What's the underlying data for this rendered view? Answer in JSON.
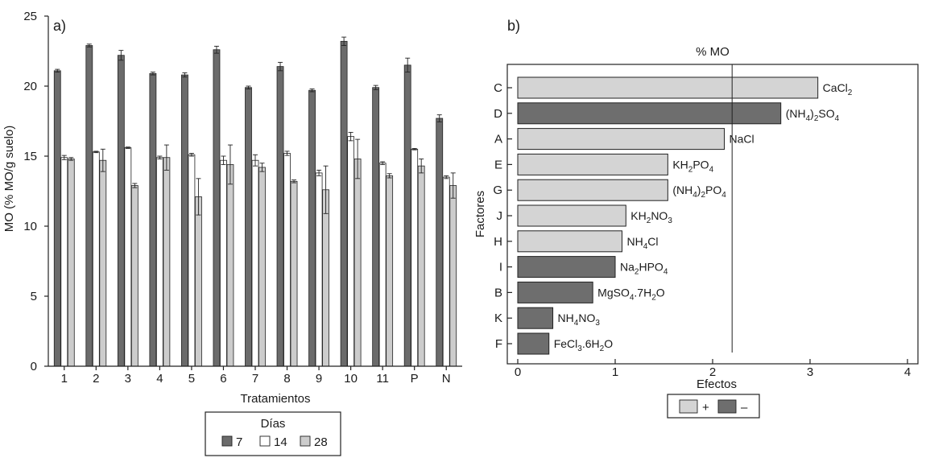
{
  "chart_data": [
    {
      "panel": "a)",
      "type": "bar",
      "title": "",
      "xlabel": "Tratamientos",
      "ylabel": "MO (% MO/g suelo)",
      "ylim": [
        0,
        25
      ],
      "yticks": [
        "0",
        "5",
        "10",
        "15",
        "20",
        "25"
      ],
      "categories": [
        "1",
        "2",
        "3",
        "4",
        "5",
        "6",
        "7",
        "8",
        "9",
        "10",
        "11",
        "P",
        "N"
      ],
      "legend": {
        "title": "Días",
        "position": "bottom-center"
      },
      "series": [
        {
          "name": "7",
          "color": "#6b6b6b",
          "values": [
            21.1,
            22.9,
            22.2,
            20.9,
            20.8,
            22.6,
            19.9,
            21.4,
            19.7,
            23.2,
            19.9,
            21.5,
            17.7
          ],
          "errors": [
            0.1,
            0.1,
            0.35,
            0.1,
            0.15,
            0.25,
            0.1,
            0.3,
            0.1,
            0.3,
            0.15,
            0.5,
            0.25
          ]
        },
        {
          "name": "14",
          "color": "#ffffff",
          "values": [
            14.9,
            15.3,
            15.6,
            14.9,
            15.1,
            14.7,
            14.7,
            15.2,
            13.8,
            16.4,
            14.5,
            15.5,
            13.5
          ],
          "errors": [
            0.15,
            0.05,
            0.05,
            0.1,
            0.1,
            0.3,
            0.4,
            0.15,
            0.2,
            0.3,
            0.1,
            0.05,
            0.1
          ]
        },
        {
          "name": "28",
          "color": "#cccccc",
          "values": [
            14.8,
            14.7,
            12.9,
            14.9,
            12.1,
            14.4,
            14.2,
            13.2,
            12.6,
            14.8,
            13.6,
            14.3,
            12.9
          ],
          "errors": [
            0.1,
            0.8,
            0.15,
            0.9,
            1.3,
            1.4,
            0.3,
            0.1,
            1.7,
            1.4,
            0.15,
            0.5,
            0.9
          ]
        }
      ]
    },
    {
      "panel": "b)",
      "type": "bar",
      "orientation": "horizontal",
      "title": "% MO",
      "xlabel": "Efectos",
      "ylabel": "Factores",
      "xlim": [
        0,
        4
      ],
      "xticks": [
        "0",
        "1",
        "2",
        "3",
        "4"
      ],
      "reference_line": 2.2,
      "legend": {
        "items": [
          {
            "label": "+",
            "color": "#d4d4d4"
          },
          {
            "label": "–",
            "color": "#6e6e6e"
          }
        ],
        "position": "bottom-center"
      },
      "bars": [
        {
          "factor": "C",
          "value": 3.08,
          "sign": "+",
          "pre": "CaCl",
          "sub": "2",
          "post": ""
        },
        {
          "factor": "D",
          "value": 2.7,
          "sign": "-",
          "pre": "(NH",
          "sub": "4",
          "post": ")",
          "sub2": "2",
          "post2": "SO",
          "sub3": "4"
        },
        {
          "factor": "A",
          "value": 2.12,
          "sign": "+",
          "pre": "NaCl",
          "sub": "",
          "post": ""
        },
        {
          "factor": "E",
          "value": 1.54,
          "sign": "+",
          "pre": "KH",
          "sub": "2",
          "post": "PO",
          "sub2": "4"
        },
        {
          "factor": "G",
          "value": 1.54,
          "sign": "+",
          "pre": "(NH",
          "sub": "4",
          "post": ")",
          "sub2": "2",
          "post2": "PO",
          "sub3": "4"
        },
        {
          "factor": "J",
          "value": 1.11,
          "sign": "+",
          "pre": "KH",
          "sub": "2",
          "post": "NO",
          "sub2": "3"
        },
        {
          "factor": "H",
          "value": 1.07,
          "sign": "+",
          "pre": "NH",
          "sub": "4",
          "post": "Cl"
        },
        {
          "factor": "I",
          "value": 1.0,
          "sign": "-",
          "pre": "Na",
          "sub": "2",
          "post": "HPO",
          "sub2": "4"
        },
        {
          "factor": "B",
          "value": 0.77,
          "sign": "-",
          "pre": "MgSO",
          "sub": "4",
          "post": ".7H",
          "sub2": "2",
          "post2": "O"
        },
        {
          "factor": "K",
          "value": 0.36,
          "sign": "-",
          "pre": "NH",
          "sub": "4",
          "post": "NO",
          "sub2": "3"
        },
        {
          "factor": "F",
          "value": 0.32,
          "sign": "-",
          "pre": "FeCl",
          "sub": "3",
          "post": ".6H",
          "sub2": "2",
          "post2": "O"
        }
      ]
    }
  ]
}
